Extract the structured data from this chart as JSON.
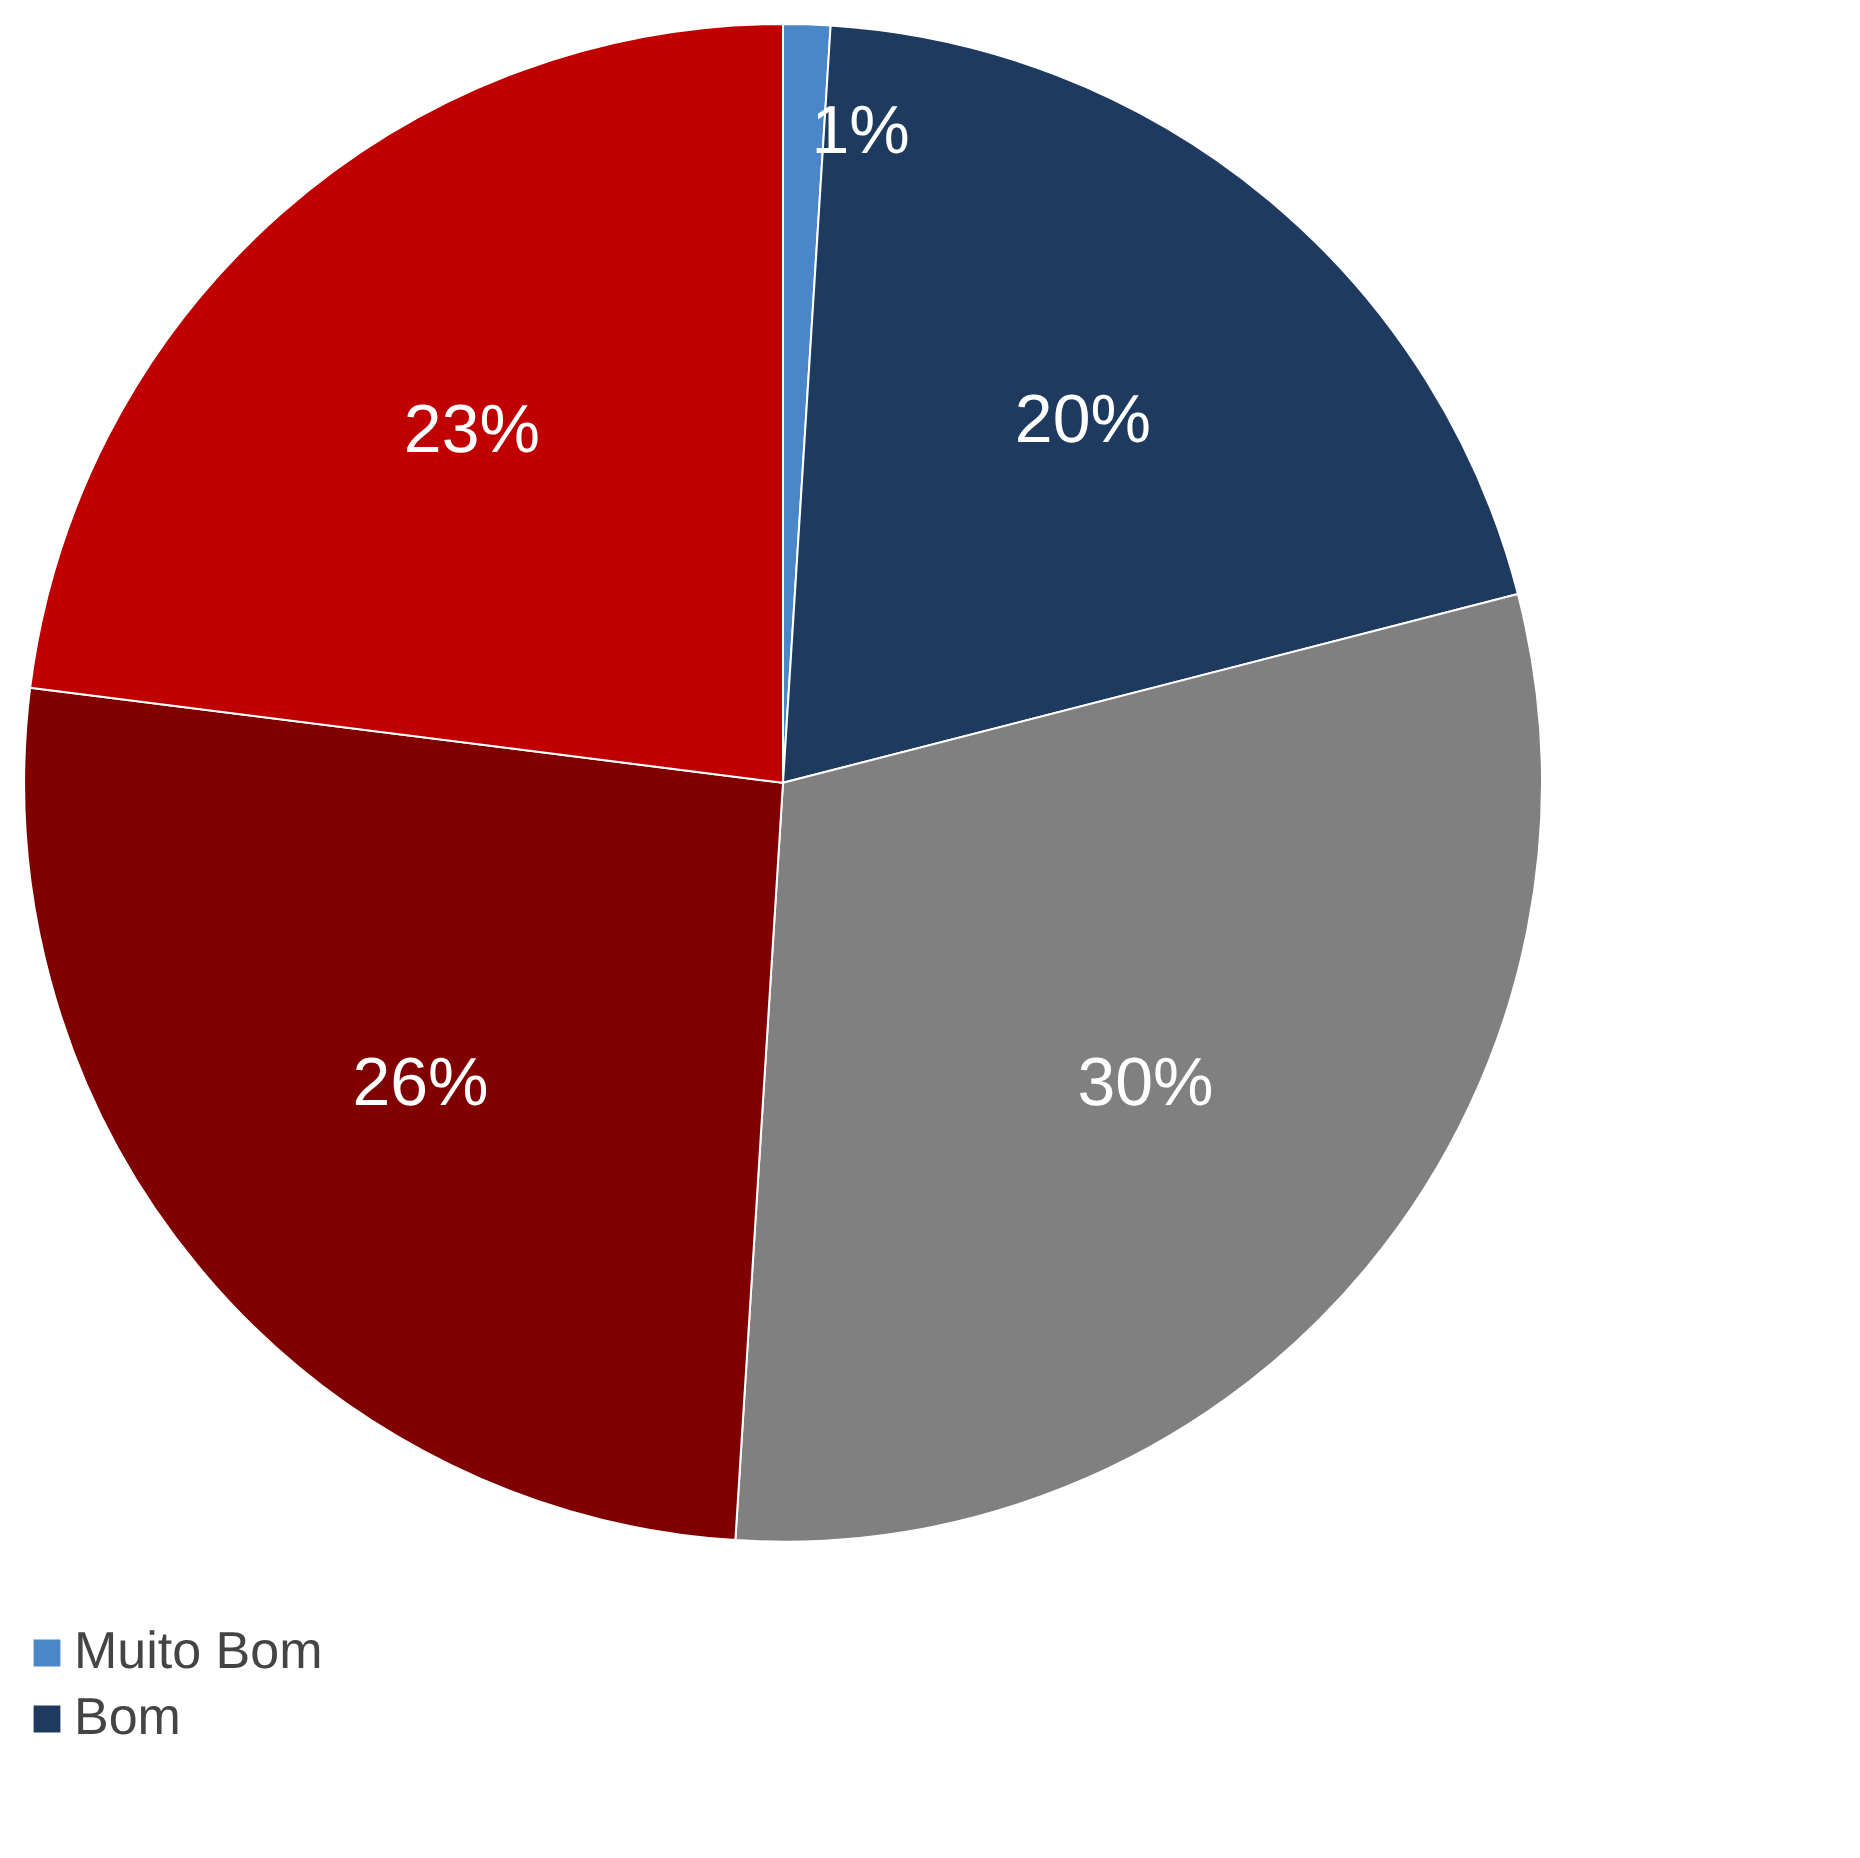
{
  "chart_data": {
    "type": "pie",
    "categories": [
      "Muito Bom",
      "Bom",
      null,
      null,
      null
    ],
    "values": [
      1,
      20,
      30,
      26,
      23
    ],
    "value_labels": [
      "1%",
      "20%",
      "30%",
      "26%",
      "23%"
    ],
    "colors": [
      "#4a86c8",
      "#1f3a5f",
      "#808080",
      "#800000",
      "#c00000"
    ],
    "legend": "bottom left"
  }
}
